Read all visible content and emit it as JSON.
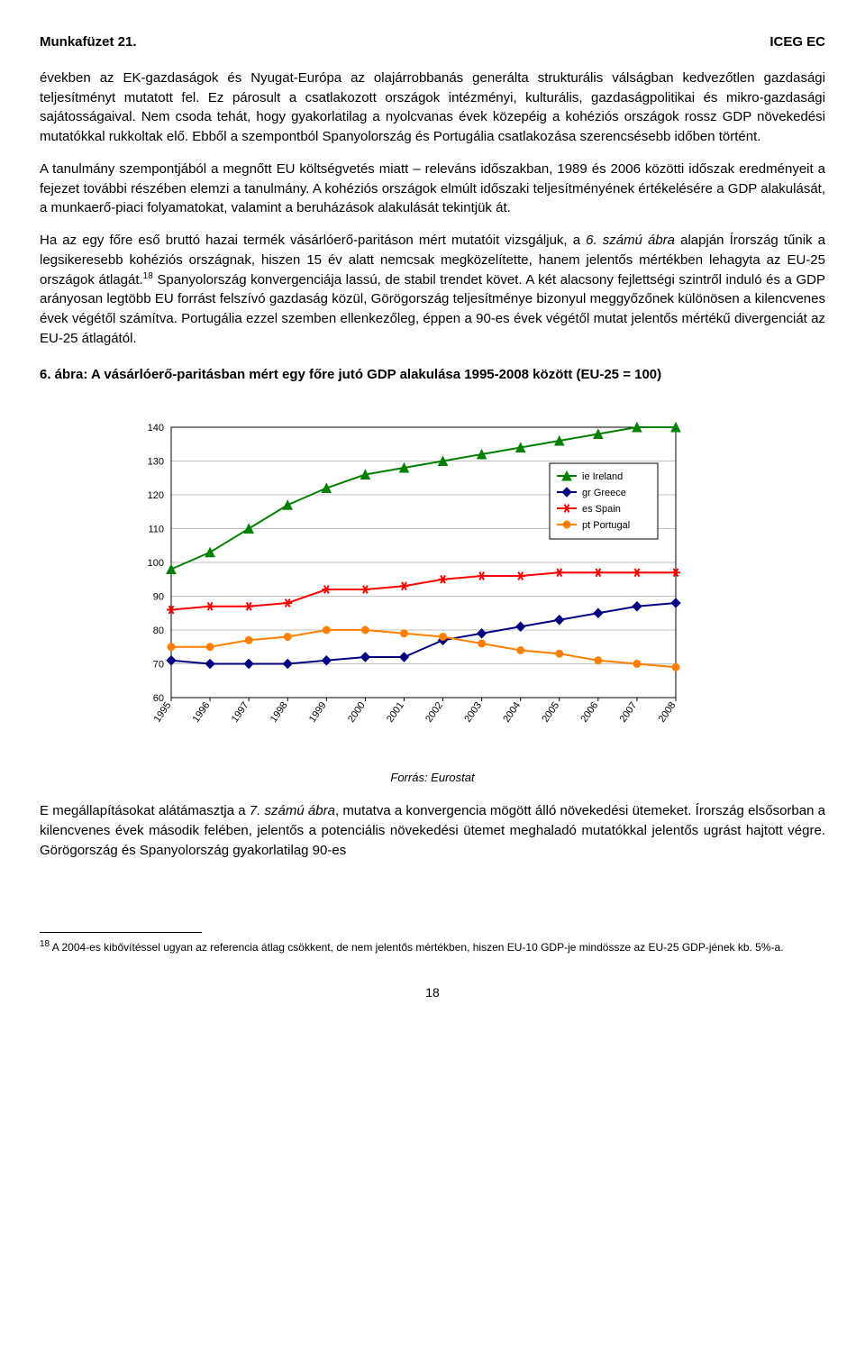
{
  "header": {
    "left": "Munkafüzet 21.",
    "right": "ICEG EC"
  },
  "paragraphs": {
    "p1": "években az EK-gazdaságok és Nyugat-Európa az olajárrobbanás generálta strukturális válságban kedvezőtlen gazdasági teljesítményt mutatott fel. Ez párosult a csatlakozott országok intézményi, kulturális, gazdaságpolitikai és mikro-gazdasági sajátosságaival. Nem csoda tehát, hogy gyakorlatilag a nyolcvanas évek közepéig a kohéziós országok rossz GDP növekedési mutatókkal rukkoltak elő. Ebből a szempontból Spanyolország és Portugália csatlakozása szerencsésebb időben történt.",
    "p2a": "A tanulmány szempontjából a megnőtt EU költségvetés miatt – releváns időszakban, 1989 és 2006 közötti időszak eredményeit a fejezet további részében elemzi a tanulmány. A kohéziós országok elmúlt időszaki teljesítményének értékelésére a GDP alakulását, a munkaerő-piaci folyamatokat, valamint a beruházások alakulását tekintjük át.",
    "p3a": "Ha az egy főre eső bruttó hazai termék vásárlóerő-paritáson mért mutatóit vizsgáljuk, a ",
    "p3i": "6. számú ábra",
    "p3b": " alapján Írország tűnik a legsikeresebb kohéziós országnak, hiszen 15 év alatt nemcsak megközelítette, hanem jelentős mértékben lehagyta az EU-25 országok átlagát.",
    "p3sup": "18",
    "p3c": " Spanyolország konvergenciája lassú, de stabil trendet követ. A két alacsony fejlettségi szintről induló és a GDP arányosan legtöbb EU forrást felszívó gazdaság közül, Görögország teljesítménye bizonyul meggyőzőnek különösen a kilencvenes évek végétől számítva. Portugália ezzel szemben ellenkezőleg, éppen a 90-es évek végétől mutat jelentős mértékű divergenciát az EU-25 átlagától.",
    "p4a": "E megállapításokat alátámasztja a ",
    "p4i": "7. számú ábra",
    "p4b": ", mutatva a konvergencia mögött álló növekedési ütemeket. Írország elsősorban a kilencvenes évek második felében, jelentős a potenciális növekedési ütemet meghaladó mutatókkal jelentős ugrást hajtott végre. Görögország és Spanyolország gyakorlatilag 90-es"
  },
  "chart": {
    "title": "6. ábra: A vásárlóerő-paritásban mért egy főre jutó GDP alakulása 1995-2008 között (EU-25 = 100)",
    "type": "line",
    "x_categories": [
      "1995",
      "1996",
      "1997",
      "1998",
      "1999",
      "2000",
      "2001",
      "2002",
      "2003",
      "2004",
      "2005",
      "2006",
      "2007",
      "2008"
    ],
    "ylim": [
      60,
      140
    ],
    "ytick_step": 10,
    "yticks": [
      60,
      70,
      80,
      90,
      100,
      110,
      120,
      130,
      140
    ],
    "grid_color": "#c0c0c0",
    "background_color": "#ffffff",
    "border_color": "#000000",
    "axis_font_size": 11,
    "legend_font_size": 11,
    "legend_border": "#000000",
    "legend_bg": "#ffffff",
    "series": [
      {
        "name": "ie Ireland",
        "color": "#008000",
        "marker": "triangle",
        "values": [
          98,
          103,
          110,
          117,
          122,
          126,
          128,
          130,
          132,
          134,
          136,
          138,
          140,
          140
        ]
      },
      {
        "name": "gr Greece",
        "color": "#000080",
        "marker": "diamond",
        "values": [
          71,
          70,
          70,
          70,
          71,
          72,
          72,
          77,
          79,
          81,
          83,
          85,
          87,
          88
        ]
      },
      {
        "name": "es Spain",
        "color": "#ff0000",
        "marker": "star",
        "values": [
          86,
          87,
          87,
          88,
          92,
          92,
          93,
          95,
          96,
          96,
          97,
          97,
          97,
          97
        ]
      },
      {
        "name": "pt Portugal",
        "color": "#ff8000",
        "marker": "circle",
        "values": [
          75,
          75,
          77,
          78,
          80,
          80,
          79,
          78,
          76,
          74,
          73,
          71,
          70,
          69
        ]
      }
    ],
    "source": "Forrás: Eurostat"
  },
  "footnote": {
    "num": "18",
    "text": " A 2004-es kibővítéssel ugyan az referencia átlag csökkent, de nem jelentős mértékben, hiszen EU-10 GDP-je mindössze az EU-25 GDP-jének kb. 5%-a."
  },
  "page_number": "18"
}
